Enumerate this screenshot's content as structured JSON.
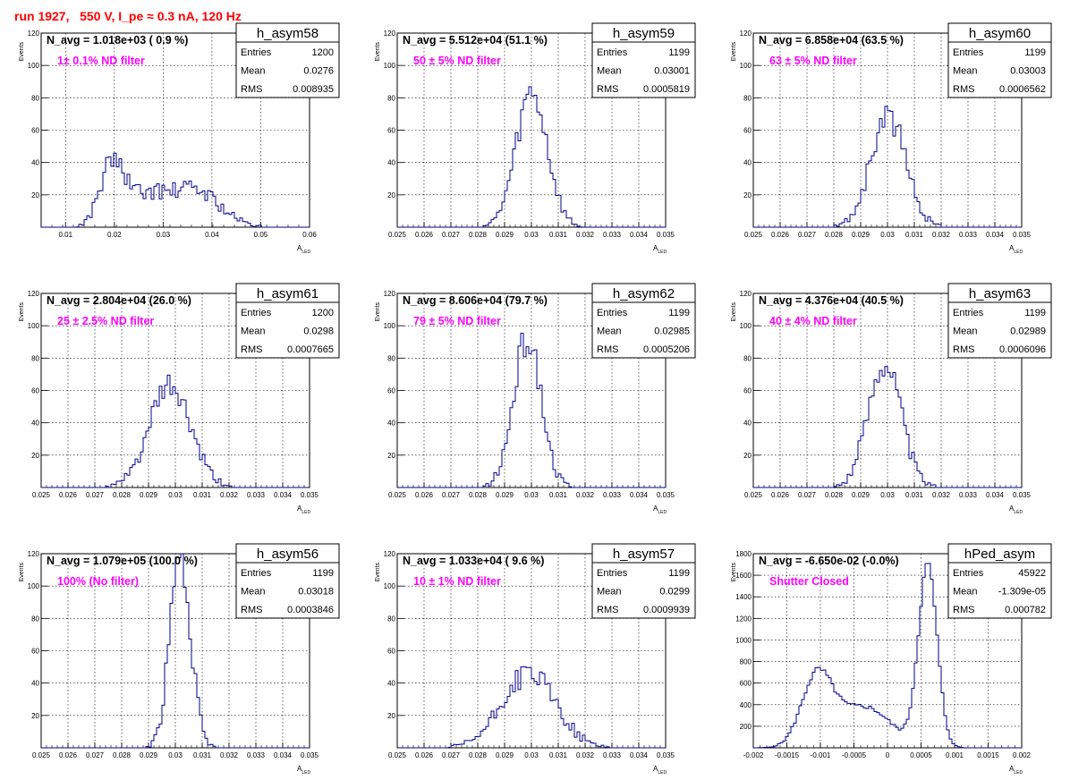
{
  "page_title": "run 1927,   550 V, I_pe ≈ 0.3 nA, 120 Hz",
  "colors": {
    "histogram": "#00008b",
    "annotation": "#ff00ff",
    "title": "#ff0000",
    "text": "#000000"
  },
  "common": {
    "ylabel": "Events",
    "xlabel_main": "A",
    "xlabel_sub": "LED",
    "stat_labels": [
      "Entries",
      "Mean",
      "RMS"
    ]
  },
  "chart_data": [
    {
      "type": "histogram",
      "name": "h_asym58",
      "navg": "N_avg = 1.018e+03 ( 0.9 %)",
      "note": "1± 0.1% ND filter",
      "entries": "1200",
      "mean": "0.0276",
      "rms": "0.008935",
      "xlim": [
        0.005,
        0.06
      ],
      "ylim": [
        0,
        120
      ],
      "xticks": [
        "0.01",
        "0.02",
        "0.03",
        "0.04",
        "0.05",
        "0.06"
      ],
      "yticks": [
        "20",
        "40",
        "60",
        "80",
        "100",
        "120"
      ],
      "peaks": [
        [
          0.0195,
          0.0025,
          38
        ],
        [
          0.0265,
          0.004,
          18
        ],
        [
          0.0365,
          0.005,
          23
        ]
      ],
      "seed": 58
    },
    {
      "type": "histogram",
      "name": "h_asym59",
      "navg": "N_avg = 5.512e+04 (51.1 %)",
      "note": "50 ± 5% ND filter",
      "entries": "1199",
      "mean": "0.03001",
      "rms": "0.0005819",
      "xlim": [
        0.025,
        0.035
      ],
      "ylim": [
        0,
        120
      ],
      "xticks": [
        "0.025",
        "0.026",
        "0.027",
        "0.028",
        "0.029",
        "0.03",
        "0.031",
        "0.032",
        "0.033",
        "0.034",
        "0.035"
      ],
      "yticks": [
        "20",
        "40",
        "60",
        "80",
        "100",
        "120"
      ],
      "peaks": [
        [
          0.03001,
          0.000582,
          83
        ]
      ],
      "seed": 59
    },
    {
      "type": "histogram",
      "name": "h_asym60",
      "navg": "N_avg = 6.858e+04 (63.5 %)",
      "note": "63 ± 5% ND filter",
      "entries": "1199",
      "mean": "0.03003",
      "rms": "0.0006562",
      "xlim": [
        0.025,
        0.035
      ],
      "ylim": [
        0,
        120
      ],
      "xticks": [
        "0.025",
        "0.026",
        "0.027",
        "0.028",
        "0.029",
        "0.03",
        "0.031",
        "0.032",
        "0.033",
        "0.034",
        "0.035"
      ],
      "yticks": [
        "20",
        "40",
        "60",
        "80",
        "100",
        "120"
      ],
      "peaks": [
        [
          0.03003,
          0.000656,
          68
        ]
      ],
      "seed": 60
    },
    {
      "type": "histogram",
      "name": "h_asym61",
      "navg": "N_avg = 2.804e+04 (26.0 %)",
      "note": "25 ± 2.5% ND filter",
      "entries": "1200",
      "mean": "0.0298",
      "rms": "0.0007665",
      "xlim": [
        0.025,
        0.035
      ],
      "ylim": [
        0,
        120
      ],
      "xticks": [
        "0.025",
        "0.026",
        "0.027",
        "0.028",
        "0.029",
        "0.03",
        "0.031",
        "0.032",
        "0.033",
        "0.034",
        "0.035"
      ],
      "yticks": [
        "20",
        "40",
        "60",
        "80",
        "100",
        "120"
      ],
      "peaks": [
        [
          0.0298,
          0.000766,
          62
        ]
      ],
      "seed": 61
    },
    {
      "type": "histogram",
      "name": "h_asym62",
      "navg": "N_avg = 8.606e+04 (79.7 %)",
      "note": "79 ± 5% ND filter",
      "entries": "1199",
      "mean": "0.02985",
      "rms": "0.0005206",
      "xlim": [
        0.025,
        0.035
      ],
      "ylim": [
        0,
        120
      ],
      "xticks": [
        "0.025",
        "0.026",
        "0.027",
        "0.028",
        "0.029",
        "0.03",
        "0.031",
        "0.032",
        "0.033",
        "0.034",
        "0.035"
      ],
      "yticks": [
        "20",
        "40",
        "60",
        "80",
        "100",
        "120"
      ],
      "peaks": [
        [
          0.02985,
          0.000521,
          92
        ]
      ],
      "seed": 62
    },
    {
      "type": "histogram",
      "name": "h_asym63",
      "navg": "N_avg = 4.376e+04 (40.5 %)",
      "note": "40 ± 4% ND filter",
      "entries": "1199",
      "mean": "0.02989",
      "rms": "0.0006096",
      "xlim": [
        0.025,
        0.035
      ],
      "ylim": [
        0,
        120
      ],
      "xticks": [
        "0.025",
        "0.026",
        "0.027",
        "0.028",
        "0.029",
        "0.03",
        "0.031",
        "0.032",
        "0.033",
        "0.034",
        "0.035"
      ],
      "yticks": [
        "20",
        "40",
        "60",
        "80",
        "100",
        "120"
      ],
      "peaks": [
        [
          0.02989,
          0.00061,
          78
        ]
      ],
      "seed": 63
    },
    {
      "type": "histogram",
      "name": "h_asym56",
      "navg": "N_avg = 1.079e+05 (100.0 %)",
      "note": "100% (No filter)",
      "entries": "1199",
      "mean": "0.03018",
      "rms": "0.0003846",
      "xlim": [
        0.025,
        0.035
      ],
      "ylim": [
        0,
        120
      ],
      "xticks": [
        "0.025",
        "0.026",
        "0.027",
        "0.028",
        "0.029",
        "0.03",
        "0.031",
        "0.032",
        "0.033",
        "0.034",
        "0.035"
      ],
      "yticks": [
        "20",
        "40",
        "60",
        "80",
        "100",
        "120"
      ],
      "peaks": [
        [
          0.03018,
          0.000385,
          118
        ]
      ],
      "seed": 56
    },
    {
      "type": "histogram",
      "name": "h_asym57",
      "navg": "N_avg = 1.033e+04 ( 9.6 %)",
      "note": "10 ± 1% ND filter",
      "entries": "1199",
      "mean": "0.0299",
      "rms": "0.0009939",
      "xlim": [
        0.025,
        0.035
      ],
      "ylim": [
        0,
        120
      ],
      "xticks": [
        "0.025",
        "0.026",
        "0.027",
        "0.028",
        "0.029",
        "0.03",
        "0.031",
        "0.032",
        "0.033",
        "0.034",
        "0.035"
      ],
      "yticks": [
        "20",
        "40",
        "60",
        "80",
        "100",
        "120"
      ],
      "peaks": [
        [
          0.0299,
          0.00099,
          46
        ]
      ],
      "seed": 57
    },
    {
      "type": "histogram",
      "name": "hPed_asym",
      "navg": "N_avg = -6.650e-02 (-0.0%)",
      "note": "Shutter Closed",
      "entries": "45922",
      "mean": "-1.309e-05",
      "rms": "0.000782",
      "xlim": [
        -0.002,
        0.002
      ],
      "ylim": [
        0,
        1800
      ],
      "xticks": [
        "-0.002",
        "-0.0015",
        "-0.001",
        "-0.0005",
        "0",
        "0.0005",
        "0.001",
        "0.0015",
        "0.002"
      ],
      "yticks": [
        "200",
        "400",
        "600",
        "800",
        "1000",
        "1200",
        "1400",
        "1600",
        "1800"
      ],
      "peaks": [
        [
          -0.00105,
          0.00023,
          640
        ],
        [
          -0.00035,
          0.0004,
          380
        ],
        [
          0.0006,
          0.00014,
          1680
        ]
      ],
      "seed": 5
    }
  ]
}
